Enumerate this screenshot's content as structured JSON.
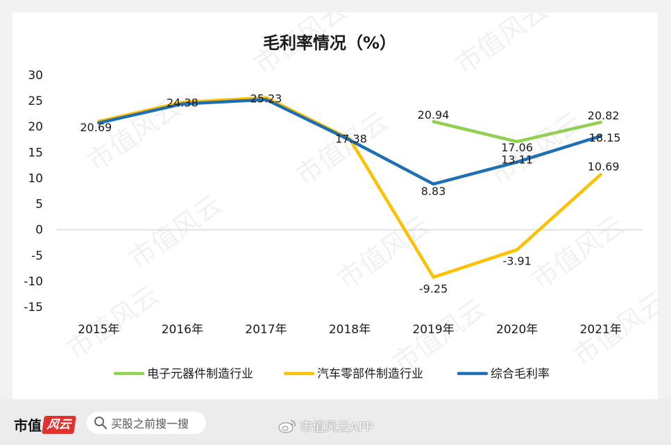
{
  "chart_data": {
    "type": "line",
    "title": "毛利率情况（%）",
    "categories": [
      "2015年",
      "2016年",
      "2017年",
      "2018年",
      "2019年",
      "2020年",
      "2021年"
    ],
    "ylim": [
      -15,
      30
    ],
    "yticks": [
      "30",
      "25",
      "20",
      "15",
      "10",
      "5",
      "0",
      "-5",
      "-10",
      "-15"
    ],
    "grid": false,
    "legend_position": "bottom",
    "series": [
      {
        "name": "电子元器件制造行业",
        "color": "#92d050",
        "values": [
          null,
          null,
          null,
          null,
          20.94,
          17.06,
          20.82
        ],
        "labels": [
          "",
          "",
          "",
          "",
          "20.94",
          "17.06",
          "20.82"
        ]
      },
      {
        "name": "汽车零部件制造行业",
        "color": "#ffc000",
        "values": [
          21.0,
          24.7,
          25.6,
          17.6,
          -9.25,
          -3.91,
          10.69
        ],
        "labels": [
          "",
          "",
          "",
          "",
          "-9.25",
          "-3.91",
          "10.69"
        ]
      },
      {
        "name": "综合毛利率",
        "color": "#1f6fb5",
        "values": [
          20.69,
          24.38,
          25.23,
          17.38,
          8.83,
          13.11,
          18.15
        ],
        "labels": [
          "20.69",
          "24.38",
          "25.23",
          "17.38",
          "8.83",
          "13.11",
          "18.15"
        ]
      }
    ]
  },
  "watermark": "市值风云",
  "footer": {
    "brand_prefix": "市值",
    "brand_badge": "风云",
    "search_placeholder": "买股之前搜一搜",
    "weibo_handle": "市值风云APP"
  }
}
